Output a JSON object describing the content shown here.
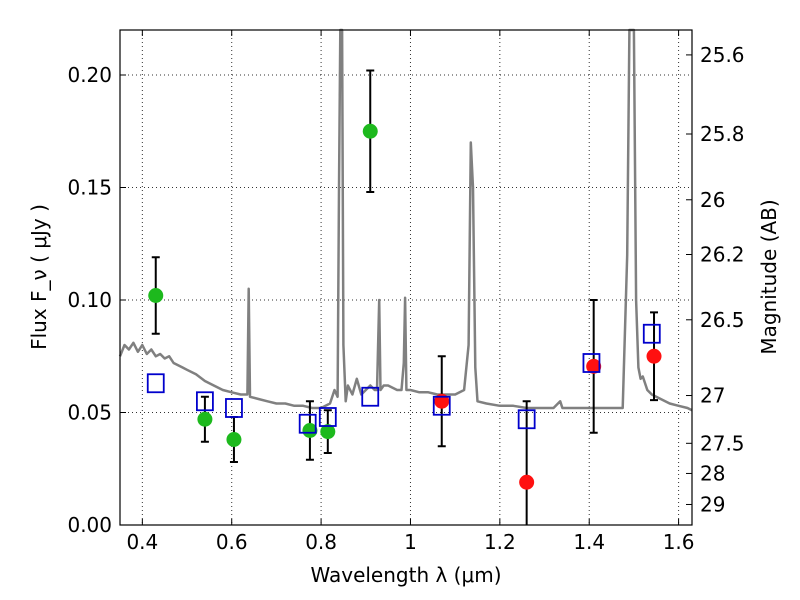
{
  "chart_data": {
    "type": "scatter",
    "x_axis": {
      "label": "Wavelength  λ (μm)",
      "range": [
        0.35,
        1.63
      ],
      "ticks": [
        0.4,
        0.6,
        0.8,
        1.0,
        1.2,
        1.4,
        1.6
      ],
      "tick_labels": [
        "0.4",
        "0.6",
        "0.8",
        "1",
        "1.2",
        "1.4",
        "1.6"
      ]
    },
    "y_axis_left": {
      "label": "Flux  F_ν  ( μJy )",
      "range": [
        0.0,
        0.22
      ],
      "ticks": [
        0.0,
        0.05,
        0.1,
        0.15,
        0.2
      ],
      "tick_labels": [
        "0.00",
        "0.05",
        "0.10",
        "0.15",
        "0.20"
      ]
    },
    "y_axis_right": {
      "label": "Magnitude (AB)",
      "ticks": [
        25.6,
        25.8,
        26,
        26.2,
        26.5,
        27,
        27.5,
        28,
        29
      ],
      "tick_labels": [
        "25.6",
        "25.8",
        "26",
        "26.2",
        "26.5",
        "27",
        "27.5",
        "28",
        "29"
      ]
    },
    "grid": true,
    "colors": {
      "green": "#1db91d",
      "red": "#ff1010",
      "blue": "#0000cc",
      "spectrum": "#808080"
    },
    "series": [
      {
        "marker": "circle",
        "color": "green",
        "points": [
          {
            "x": 0.43,
            "y": 0.102,
            "err": 0.017
          },
          {
            "x": 0.54,
            "y": 0.047,
            "err": 0.01
          },
          {
            "x": 0.605,
            "y": 0.038,
            "err": 0.01
          },
          {
            "x": 0.775,
            "y": 0.042,
            "err": 0.013
          },
          {
            "x": 0.815,
            "y": 0.0415,
            "err": 0.0095
          },
          {
            "x": 0.91,
            "y": 0.175,
            "err": 0.027
          }
        ]
      },
      {
        "marker": "circle",
        "color": "red",
        "points": [
          {
            "x": 1.07,
            "y": 0.055,
            "err": 0.02
          },
          {
            "x": 1.26,
            "y": 0.019,
            "err": 0.036
          },
          {
            "x": 1.41,
            "y": 0.0705,
            "err": 0.0295
          },
          {
            "x": 1.545,
            "y": 0.075,
            "err": 0.0195
          }
        ]
      },
      {
        "marker": "square",
        "color": "blue",
        "points": [
          {
            "x": 0.43,
            "y": 0.063
          },
          {
            "x": 0.54,
            "y": 0.055
          },
          {
            "x": 0.605,
            "y": 0.052
          },
          {
            "x": 0.77,
            "y": 0.045
          },
          {
            "x": 0.815,
            "y": 0.048
          },
          {
            "x": 0.91,
            "y": 0.057
          },
          {
            "x": 1.07,
            "y": 0.053
          },
          {
            "x": 1.26,
            "y": 0.047
          },
          {
            "x": 1.405,
            "y": 0.072
          },
          {
            "x": 1.54,
            "y": 0.085
          }
        ]
      }
    ],
    "spectrum": [
      [
        0.35,
        0.075
      ],
      [
        0.36,
        0.08
      ],
      [
        0.37,
        0.078
      ],
      [
        0.38,
        0.081
      ],
      [
        0.39,
        0.077
      ],
      [
        0.4,
        0.08
      ],
      [
        0.41,
        0.076
      ],
      [
        0.42,
        0.078
      ],
      [
        0.43,
        0.075
      ],
      [
        0.44,
        0.076
      ],
      [
        0.45,
        0.074
      ],
      [
        0.46,
        0.075
      ],
      [
        0.47,
        0.072
      ],
      [
        0.48,
        0.071
      ],
      [
        0.49,
        0.07
      ],
      [
        0.5,
        0.069
      ],
      [
        0.52,
        0.067
      ],
      [
        0.54,
        0.064
      ],
      [
        0.56,
        0.062
      ],
      [
        0.58,
        0.06
      ],
      [
        0.6,
        0.059
      ],
      [
        0.62,
        0.058
      ],
      [
        0.635,
        0.058
      ],
      [
        0.638,
        0.105
      ],
      [
        0.641,
        0.057
      ],
      [
        0.66,
        0.056
      ],
      [
        0.68,
        0.055
      ],
      [
        0.7,
        0.054
      ],
      [
        0.72,
        0.054
      ],
      [
        0.74,
        0.053
      ],
      [
        0.76,
        0.053
      ],
      [
        0.78,
        0.052
      ],
      [
        0.8,
        0.052
      ],
      [
        0.82,
        0.054
      ],
      [
        0.83,
        0.06
      ],
      [
        0.837,
        0.057
      ],
      [
        0.84,
        0.15
      ],
      [
        0.843,
        0.22
      ],
      [
        0.847,
        0.22
      ],
      [
        0.85,
        0.08
      ],
      [
        0.855,
        0.055
      ],
      [
        0.86,
        0.062
      ],
      [
        0.87,
        0.058
      ],
      [
        0.88,
        0.065
      ],
      [
        0.89,
        0.058
      ],
      [
        0.9,
        0.06
      ],
      [
        0.91,
        0.062
      ],
      [
        0.92,
        0.06
      ],
      [
        0.925,
        0.06
      ],
      [
        0.93,
        0.1
      ],
      [
        0.933,
        0.06
      ],
      [
        0.94,
        0.062
      ],
      [
        0.95,
        0.062
      ],
      [
        0.96,
        0.061
      ],
      [
        0.97,
        0.06
      ],
      [
        0.98,
        0.06
      ],
      [
        0.985,
        0.072
      ],
      [
        0.988,
        0.101
      ],
      [
        0.991,
        0.06
      ],
      [
        1.0,
        0.06
      ],
      [
        1.02,
        0.059
      ],
      [
        1.04,
        0.059
      ],
      [
        1.06,
        0.058
      ],
      [
        1.08,
        0.058
      ],
      [
        1.1,
        0.058
      ],
      [
        1.12,
        0.06
      ],
      [
        1.13,
        0.08
      ],
      [
        1.135,
        0.17
      ],
      [
        1.14,
        0.15
      ],
      [
        1.145,
        0.07
      ],
      [
        1.15,
        0.055
      ],
      [
        1.17,
        0.054
      ],
      [
        1.2,
        0.053
      ],
      [
        1.23,
        0.053
      ],
      [
        1.26,
        0.052
      ],
      [
        1.29,
        0.052
      ],
      [
        1.32,
        0.052
      ],
      [
        1.335,
        0.055
      ],
      [
        1.34,
        0.052
      ],
      [
        1.37,
        0.052
      ],
      [
        1.4,
        0.052
      ],
      [
        1.43,
        0.052
      ],
      [
        1.46,
        0.052
      ],
      [
        1.475,
        0.052
      ],
      [
        1.485,
        0.12
      ],
      [
        1.49,
        0.22
      ],
      [
        1.5,
        0.22
      ],
      [
        1.505,
        0.1
      ],
      [
        1.51,
        0.07
      ],
      [
        1.515,
        0.065
      ],
      [
        1.52,
        0.066
      ],
      [
        1.53,
        0.06
      ],
      [
        1.54,
        0.058
      ],
      [
        1.56,
        0.056
      ],
      [
        1.58,
        0.054
      ],
      [
        1.6,
        0.053
      ],
      [
        1.62,
        0.052
      ],
      [
        1.63,
        0.051
      ]
    ]
  }
}
